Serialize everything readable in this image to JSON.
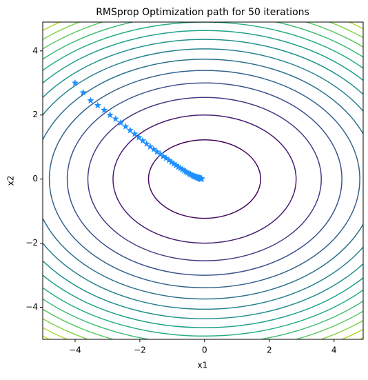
{
  "chart_data": {
    "type": "contour",
    "title": "RMSprop Optimization path for 50 iterations",
    "xlabel": "x1",
    "ylabel": "x2",
    "xlim": [
      -5,
      4.9
    ],
    "ylim": [
      -5,
      4.9
    ],
    "xticks": [
      {
        "value": -4,
        "label": "−4"
      },
      {
        "value": -2,
        "label": "−2"
      },
      0,
      2,
      4
    ],
    "yticks": [
      {
        "value": -4,
        "label": "−4"
      },
      {
        "value": -2,
        "label": "−2"
      },
      0,
      2,
      4
    ],
    "weights": [
      1,
      2
    ],
    "levels": [
      3,
      8,
      13,
      18,
      23,
      28,
      33,
      38,
      43,
      48,
      53,
      58,
      63,
      68,
      73
    ],
    "level_colors": [
      "#46085c",
      "#471e74",
      "#433d84",
      "#3b528b",
      "#33638d",
      "#2c728e",
      "#26828e",
      "#21918c",
      "#1fa088",
      "#28ae80",
      "#3fbc73",
      "#5ec962",
      "#84d44b",
      "#addc30",
      "#d8e219"
    ],
    "marker_color": "#1e90ff",
    "x": [
      -4,
      -3.75,
      -3.52,
      -3.3,
      -3.1,
      -2.92,
      -2.75,
      -2.59,
      -2.44,
      -2.3,
      -2.16,
      -2.03,
      -1.91,
      -1.79,
      -1.68,
      -1.57,
      -1.47,
      -1.37,
      -1.28,
      -1.19,
      -1.1,
      -1.02,
      -0.95,
      -0.88,
      -0.81,
      -0.75,
      -0.69,
      -0.63,
      -0.58,
      -0.53,
      -0.48,
      -0.44,
      -0.4,
      -0.36,
      -0.33,
      -0.3,
      -0.27,
      -0.24,
      -0.22,
      -0.2,
      -0.18,
      -0.16,
      -0.15,
      -0.14,
      -0.13,
      -0.12,
      -0.11,
      -0.1,
      -0.1,
      -0.09
    ],
    "y": [
      3,
      2.7,
      2.45,
      2.3,
      2.15,
      2.0,
      1.88,
      1.76,
      1.64,
      1.52,
      1.41,
      1.3,
      1.2,
      1.1,
      1.01,
      0.93,
      0.85,
      0.78,
      0.71,
      0.65,
      0.59,
      0.53,
      0.48,
      0.43,
      0.38,
      0.34,
      0.3,
      0.26,
      0.23,
      0.2,
      0.17,
      0.15,
      0.13,
      0.11,
      0.09,
      0.08,
      0.07,
      0.06,
      0.05,
      0.04,
      0.035,
      0.03,
      0.025,
      0.02,
      0.015,
      0.012,
      0.01,
      0.008,
      0.005,
      0.003
    ]
  }
}
